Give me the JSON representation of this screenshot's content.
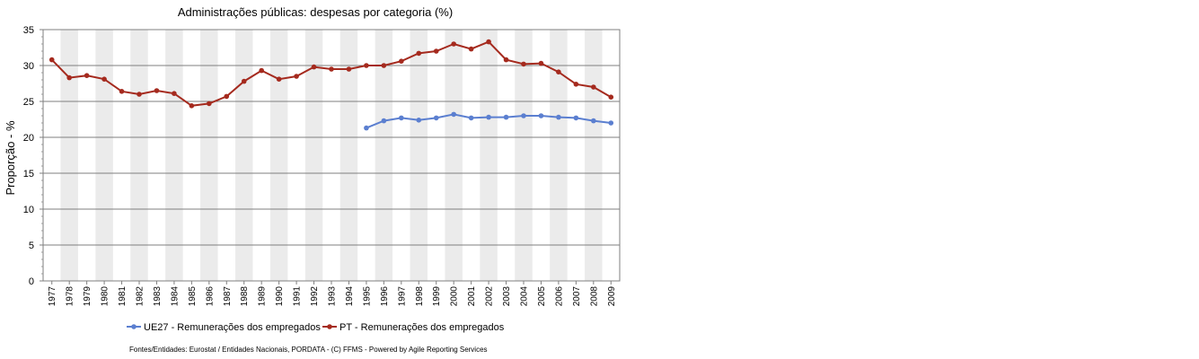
{
  "chart_data": {
    "type": "line",
    "title": "Administrações públicas: despesas por categoria (%)",
    "xlabel": "",
    "ylabel": "Proporção - %",
    "ylim": [
      0,
      35
    ],
    "yticks": [
      "0",
      "5",
      "10",
      "15",
      "20",
      "25",
      "30",
      "35"
    ],
    "grid": true,
    "legend_position": "bottom",
    "categories": [
      "1977",
      "1978",
      "1979",
      "1980",
      "1981",
      "1982",
      "1983",
      "1984",
      "1985",
      "1986",
      "1987",
      "1988",
      "1989",
      "1990",
      "1991",
      "1992",
      "1993",
      "1994",
      "1995",
      "1996",
      "1997",
      "1998",
      "1999",
      "2000",
      "2001",
      "2002",
      "2003",
      "2004",
      "2005",
      "2006",
      "2007",
      "2008",
      "2009"
    ],
    "series": [
      {
        "name": "UE27 - Remunerações dos empregados",
        "color": "#5b7fd0",
        "values": [
          null,
          null,
          null,
          null,
          null,
          null,
          null,
          null,
          null,
          null,
          null,
          null,
          null,
          null,
          null,
          null,
          null,
          null,
          21.3,
          22.3,
          22.7,
          22.4,
          22.7,
          23.2,
          22.7,
          22.8,
          22.8,
          23.0,
          23.0,
          22.8,
          22.7,
          22.3,
          22.0
        ]
      },
      {
        "name": "PT - Remunerações dos empregados",
        "color": "#a52a1e",
        "values": [
          30.8,
          28.3,
          28.6,
          28.1,
          26.4,
          26.0,
          26.5,
          26.1,
          24.4,
          24.7,
          25.7,
          27.8,
          29.3,
          28.1,
          28.5,
          29.8,
          29.5,
          29.5,
          30.0,
          30.0,
          30.6,
          31.7,
          32.0,
          33.0,
          32.3,
          33.3,
          30.8,
          30.2,
          30.3,
          29.1,
          27.4,
          27.0,
          25.6
        ]
      }
    ]
  },
  "footer": {
    "source": "Fontes/Entidades: Eurostat / Entidades Nacionais, PORDATA - (C) FFMS - Powered by Agile Reporting Services"
  }
}
